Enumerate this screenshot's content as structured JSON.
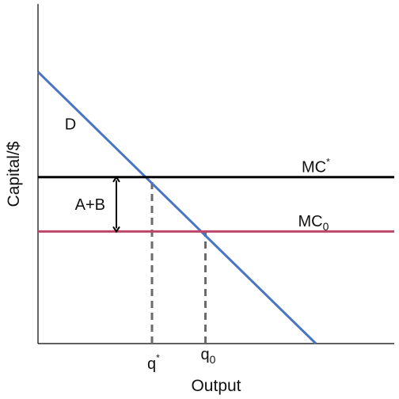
{
  "chart_data": {
    "type": "line",
    "title": "",
    "xlabel": "Output",
    "ylabel": "Capital/$",
    "xlim": [
      0,
      10
    ],
    "ylim": [
      0,
      10
    ],
    "x_ticks": [
      {
        "x": 3.2,
        "label": "q",
        "sup": "*",
        "sub": ""
      },
      {
        "x": 4.7,
        "label": "q",
        "sup": "",
        "sub": "0"
      }
    ],
    "series": [
      {
        "name": "D",
        "kind": "demand",
        "color": "#4a74c4",
        "points": [
          [
            0,
            8.0
          ],
          [
            7.8,
            0
          ]
        ]
      },
      {
        "name": "MC*",
        "kind": "marginal-cost-star",
        "color": "#000000",
        "points": [
          [
            0,
            4.9
          ],
          [
            10,
            4.9
          ]
        ]
      },
      {
        "name": "MC0",
        "kind": "marginal-cost-0",
        "color": "#c0456a",
        "points": [
          [
            0,
            3.3
          ],
          [
            10,
            3.3
          ]
        ]
      }
    ],
    "labels": {
      "demand": {
        "text": "D",
        "x": 0.75,
        "y": 6.3
      },
      "mc_star": {
        "text": "MC",
        "sup": "*",
        "x": 7.4,
        "y": 5.05
      },
      "mc_zero": {
        "text": "MC",
        "sub": "0",
        "x": 7.3,
        "y": 3.45
      }
    },
    "gap": {
      "label": "A+B",
      "x": 2.2,
      "y_from": 3.3,
      "y_to": 4.9
    },
    "guides": [
      {
        "x": 3.2,
        "y_from": 0,
        "y_to": 4.9,
        "style": "dashed",
        "color": "#6b6b6b"
      },
      {
        "x": 4.7,
        "y_from": 0,
        "y_to": 3.3,
        "style": "dashed",
        "color": "#6b6b6b"
      }
    ],
    "grid": false,
    "legend": "none"
  }
}
